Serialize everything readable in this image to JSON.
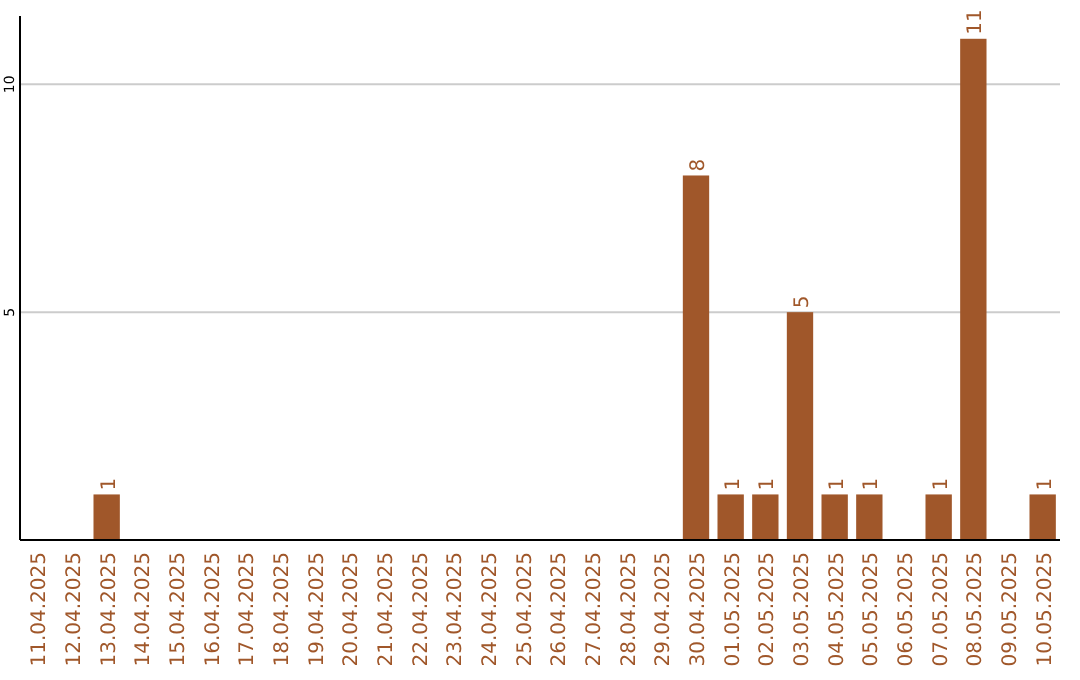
{
  "chart_data": {
    "type": "bar",
    "categories": [
      "11.04.2025",
      "12.04.2025",
      "13.04.2025",
      "14.04.2025",
      "15.04.2025",
      "16.04.2025",
      "17.04.2025",
      "18.04.2025",
      "19.04.2025",
      "20.04.2025",
      "21.04.2025",
      "22.04.2025",
      "23.04.2025",
      "24.04.2025",
      "25.04.2025",
      "26.04.2025",
      "27.04.2025",
      "28.04.2025",
      "29.04.2025",
      "30.04.2025",
      "01.05.2025",
      "02.05.2025",
      "03.05.2025",
      "04.05.2025",
      "05.05.2025",
      "06.05.2025",
      "07.05.2025",
      "08.05.2025",
      "09.05.2025",
      "10.05.2025"
    ],
    "values": [
      0,
      0,
      1,
      0,
      0,
      0,
      0,
      0,
      0,
      0,
      0,
      0,
      0,
      0,
      0,
      0,
      0,
      0,
      0,
      8,
      1,
      1,
      5,
      1,
      1,
      0,
      1,
      11,
      0,
      1
    ],
    "value_labels": [
      null,
      null,
      "1",
      null,
      null,
      null,
      null,
      null,
      null,
      null,
      null,
      null,
      null,
      null,
      null,
      null,
      null,
      null,
      null,
      "8",
      "1",
      "1",
      "5",
      "1",
      "1",
      null,
      "1",
      "11",
      null,
      "1"
    ],
    "color": "#a0572a",
    "ylim": [
      0,
      11.5
    ],
    "yticks": [
      5,
      10
    ],
    "grid": "y"
  }
}
